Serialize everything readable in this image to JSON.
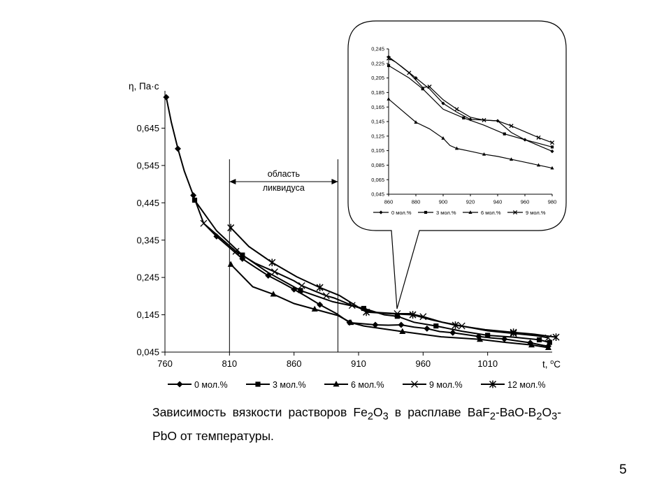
{
  "caption": {
    "p1": "Зависимость вязкости растворов Fe",
    "s1": "2",
    "p2": "O",
    "s2": "3",
    "p3": " в расплаве BaF",
    "s3": "2",
    "p4": "-BaO-B",
    "s4": "2",
    "p5": "O",
    "s5": "3",
    "p6": "-PbO от температуры."
  },
  "page_number": "5",
  "chart_data": [
    {
      "type": "line",
      "title": "",
      "xlabel_prefix": "t, ",
      "xlabel_sup": "o",
      "xlabel_suffix": "C",
      "ylabel": "η, Па·с",
      "xlim": [
        760,
        1060
      ],
      "ylim": [
        0.045,
        0.745
      ],
      "xticks": [
        "760",
        "810",
        "860",
        "910",
        "960",
        "1010"
      ],
      "yticks": [
        "0,045",
        "0,145",
        "0,245",
        "0,345",
        "0,445",
        "0,545",
        "0,645"
      ],
      "grid": false,
      "legend_position": "bottom",
      "annotation": {
        "line1": "область",
        "line2": "ликвидуса",
        "x_from": 810,
        "x_to": 894
      },
      "series": [
        {
          "name": "0 мол.%",
          "marker": "diamond",
          "x": [
            761,
            765,
            770,
            775,
            782,
            790,
            800,
            810,
            820,
            830,
            840,
            850,
            860,
            870,
            880,
            893,
            903,
            913,
            923,
            933,
            943,
            953,
            963,
            973,
            983,
            993,
            1003,
            1013,
            1023,
            1033,
            1043,
            1053,
            1057
          ],
          "y": [
            0.728,
            0.66,
            0.59,
            0.53,
            0.465,
            0.39,
            0.355,
            0.325,
            0.295,
            0.272,
            0.25,
            0.232,
            0.213,
            0.193,
            0.172,
            0.148,
            0.124,
            0.121,
            0.118,
            0.117,
            0.118,
            0.112,
            0.108,
            0.1,
            0.097,
            0.092,
            0.087,
            0.083,
            0.08,
            0.075,
            0.07,
            0.063,
            0.061
          ]
        },
        {
          "name": "3 мол.%",
          "marker": "square",
          "x": [
            783,
            800,
            820,
            840,
            865,
            890,
            914,
            930,
            940,
            953,
            970,
            990,
            1010,
            1030,
            1050,
            1058
          ],
          "y": [
            0.452,
            0.37,
            0.305,
            0.258,
            0.21,
            0.18,
            0.162,
            0.145,
            0.141,
            0.125,
            0.115,
            0.101,
            0.09,
            0.085,
            0.078,
            0.071
          ]
        },
        {
          "name": "6 мол.%",
          "marker": "triangle",
          "x": [
            811,
            828,
            844,
            860,
            876,
            894,
            904,
            914,
            944,
            974,
            1004,
            1024,
            1044,
            1057
          ],
          "y": [
            0.28,
            0.22,
            0.2,
            0.175,
            0.16,
            0.143,
            0.124,
            0.115,
            0.1,
            0.086,
            0.079,
            0.071,
            0.064,
            0.057
          ]
        },
        {
          "name": "9 мол.%",
          "marker": "x",
          "x": [
            790,
            800,
            815,
            830,
            845,
            860,
            866,
            875,
            885,
            891,
            905,
            920,
            940,
            950,
            960,
            975,
            990,
            1010,
            1030,
            1050,
            1057
          ],
          "y": [
            0.39,
            0.36,
            0.315,
            0.283,
            0.26,
            0.236,
            0.223,
            0.21,
            0.196,
            0.19,
            0.17,
            0.152,
            0.148,
            0.148,
            0.14,
            0.125,
            0.115,
            0.102,
            0.095,
            0.088,
            0.083
          ]
        },
        {
          "name": "12 мол.%",
          "marker": "star",
          "x": [
            811,
            825,
            843,
            862,
            880,
            895,
            916,
            940,
            952,
            966,
            985,
            1008,
            1030,
            1046,
            1063
          ],
          "y": [
            0.378,
            0.328,
            0.285,
            0.247,
            0.218,
            0.197,
            0.152,
            0.147,
            0.145,
            0.132,
            0.117,
            0.105,
            0.098,
            0.093,
            0.085
          ]
        }
      ]
    },
    {
      "type": "line",
      "title": "",
      "xlim": [
        860,
        980
      ],
      "ylim": [
        0.045,
        0.245
      ],
      "xticks": [
        "860",
        "880",
        "900",
        "920",
        "940",
        "960",
        "980"
      ],
      "yticks": [
        "0,045",
        "0,065",
        "0,085",
        "0,105",
        "0,125",
        "0,145",
        "0,165",
        "0,185",
        "0,205",
        "0,225",
        "0,245"
      ],
      "grid": false,
      "legend_position": "bottom",
      "series": [
        {
          "name": "0 мол.%",
          "marker": "diamond",
          "x": [
            860,
            870,
            880,
            890,
            900,
            910,
            920,
            930,
            940,
            950,
            960,
            970,
            980
          ],
          "y": [
            0.234,
            0.22,
            0.205,
            0.19,
            0.17,
            0.158,
            0.148,
            0.147,
            0.146,
            0.13,
            0.12,
            0.112,
            0.104
          ]
        },
        {
          "name": "3 мол.%",
          "marker": "square",
          "x": [
            860,
            875,
            885,
            900,
            915,
            930,
            945,
            960,
            980
          ],
          "y": [
            0.222,
            0.205,
            0.19,
            0.162,
            0.15,
            0.14,
            0.128,
            0.12,
            0.11
          ]
        },
        {
          "name": "6 мол.%",
          "marker": "triangle",
          "x": [
            860,
            870,
            880,
            890,
            900,
            905,
            910,
            920,
            930,
            940,
            950,
            960,
            970,
            980
          ],
          "y": [
            0.176,
            0.16,
            0.144,
            0.135,
            0.122,
            0.112,
            0.108,
            0.104,
            0.1,
            0.097,
            0.093,
            0.089,
            0.085,
            0.081
          ]
        },
        {
          "name": "9 мол.%",
          "marker": "x",
          "x": [
            860,
            865,
            875,
            885,
            890,
            900,
            910,
            920,
            930,
            940,
            950,
            960,
            970,
            980
          ],
          "y": [
            0.232,
            0.227,
            0.212,
            0.192,
            0.193,
            0.175,
            0.162,
            0.151,
            0.147,
            0.146,
            0.139,
            0.131,
            0.123,
            0.116
          ]
        }
      ]
    }
  ]
}
